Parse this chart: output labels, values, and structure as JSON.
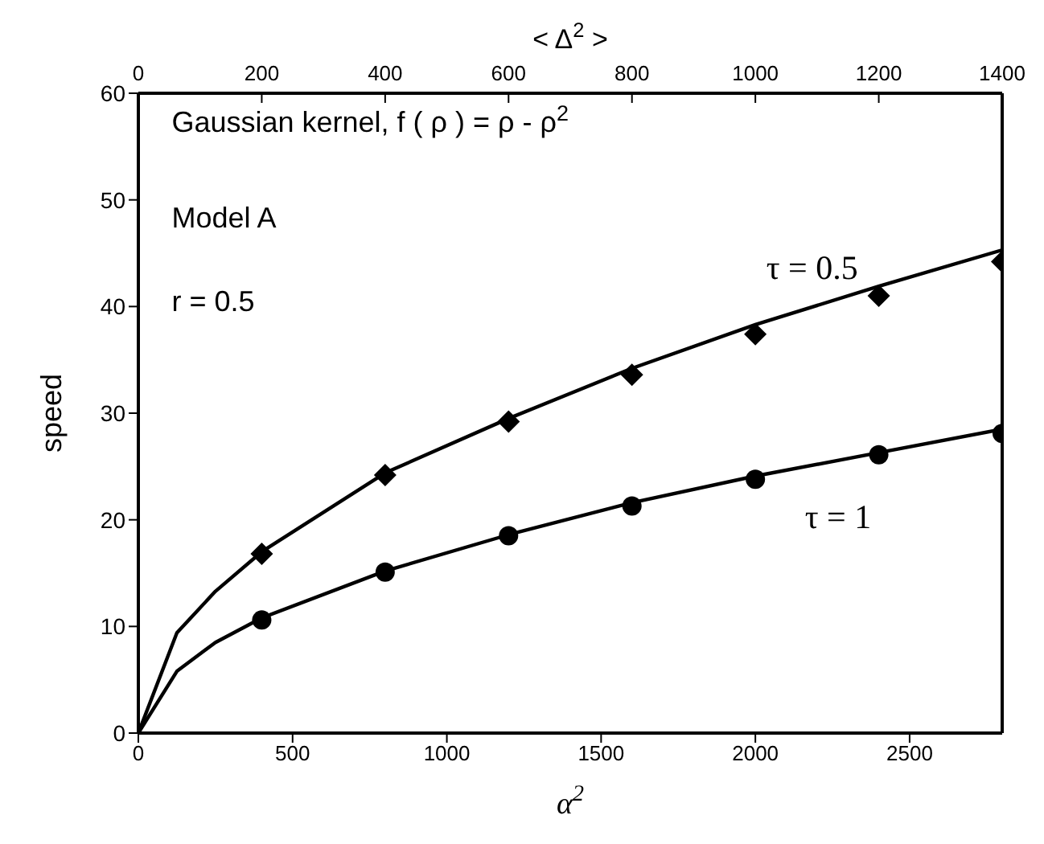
{
  "chart_data": {
    "type": "line",
    "xlabel": "α$^{2}$",
    "x2label": "< Δ$^{2}$ >",
    "ylabel": "speed",
    "xlim": [
      0,
      2800
    ],
    "xticks": [
      0,
      500,
      1000,
      1500,
      2000,
      2500
    ],
    "x2lim": [
      0,
      1400
    ],
    "x2ticks": [
      0,
      200,
      400,
      600,
      800,
      1000,
      1200,
      1400
    ],
    "ylim": [
      0,
      60
    ],
    "yticks": [
      0,
      10,
      20,
      30,
      40,
      50,
      60
    ],
    "line_style": "solid",
    "series": [
      {
        "color": "#000000",
        "x": [
          0,
          125,
          250,
          400,
          800,
          1200,
          1600,
          2000,
          2400,
          2800
        ],
        "values": [
          0,
          9.4,
          13.3,
          17,
          24.4,
          29.5,
          34.2,
          38.3,
          41.9,
          45.3
        ]
      },
      {
        "color": "#000000",
        "x": [
          0,
          125,
          250,
          400,
          800,
          1200,
          1600,
          2000,
          2400,
          2800
        ],
        "values": [
          0,
          5.8,
          8.5,
          10.8,
          15.2,
          18.6,
          21.6,
          24.1,
          26.3,
          28.5
        ]
      },
      {
        "type": "scatter",
        "color": "#000000",
        "marker": "diamond",
        "x": [
          400,
          800,
          1200,
          1600,
          2000,
          2400,
          2800
        ],
        "values": [
          16.8,
          24.2,
          29.2,
          33.6,
          37.4,
          41,
          44.2
        ]
      },
      {
        "type": "scatter",
        "color": "#000000",
        "marker": "circle",
        "x": [
          400,
          800,
          1200,
          1600,
          2000,
          2400,
          2800
        ],
        "values": [
          10.6,
          15.1,
          18.5,
          21.3,
          23.8,
          26.1,
          28.1
        ]
      }
    ],
    "annotations": [
      "Gaussian kernel,  f ( ρ ) = ρ - ρ$^{2}$",
      "Model A",
      "r = 0.5",
      "τ = 0.5",
      "τ = 1"
    ]
  }
}
